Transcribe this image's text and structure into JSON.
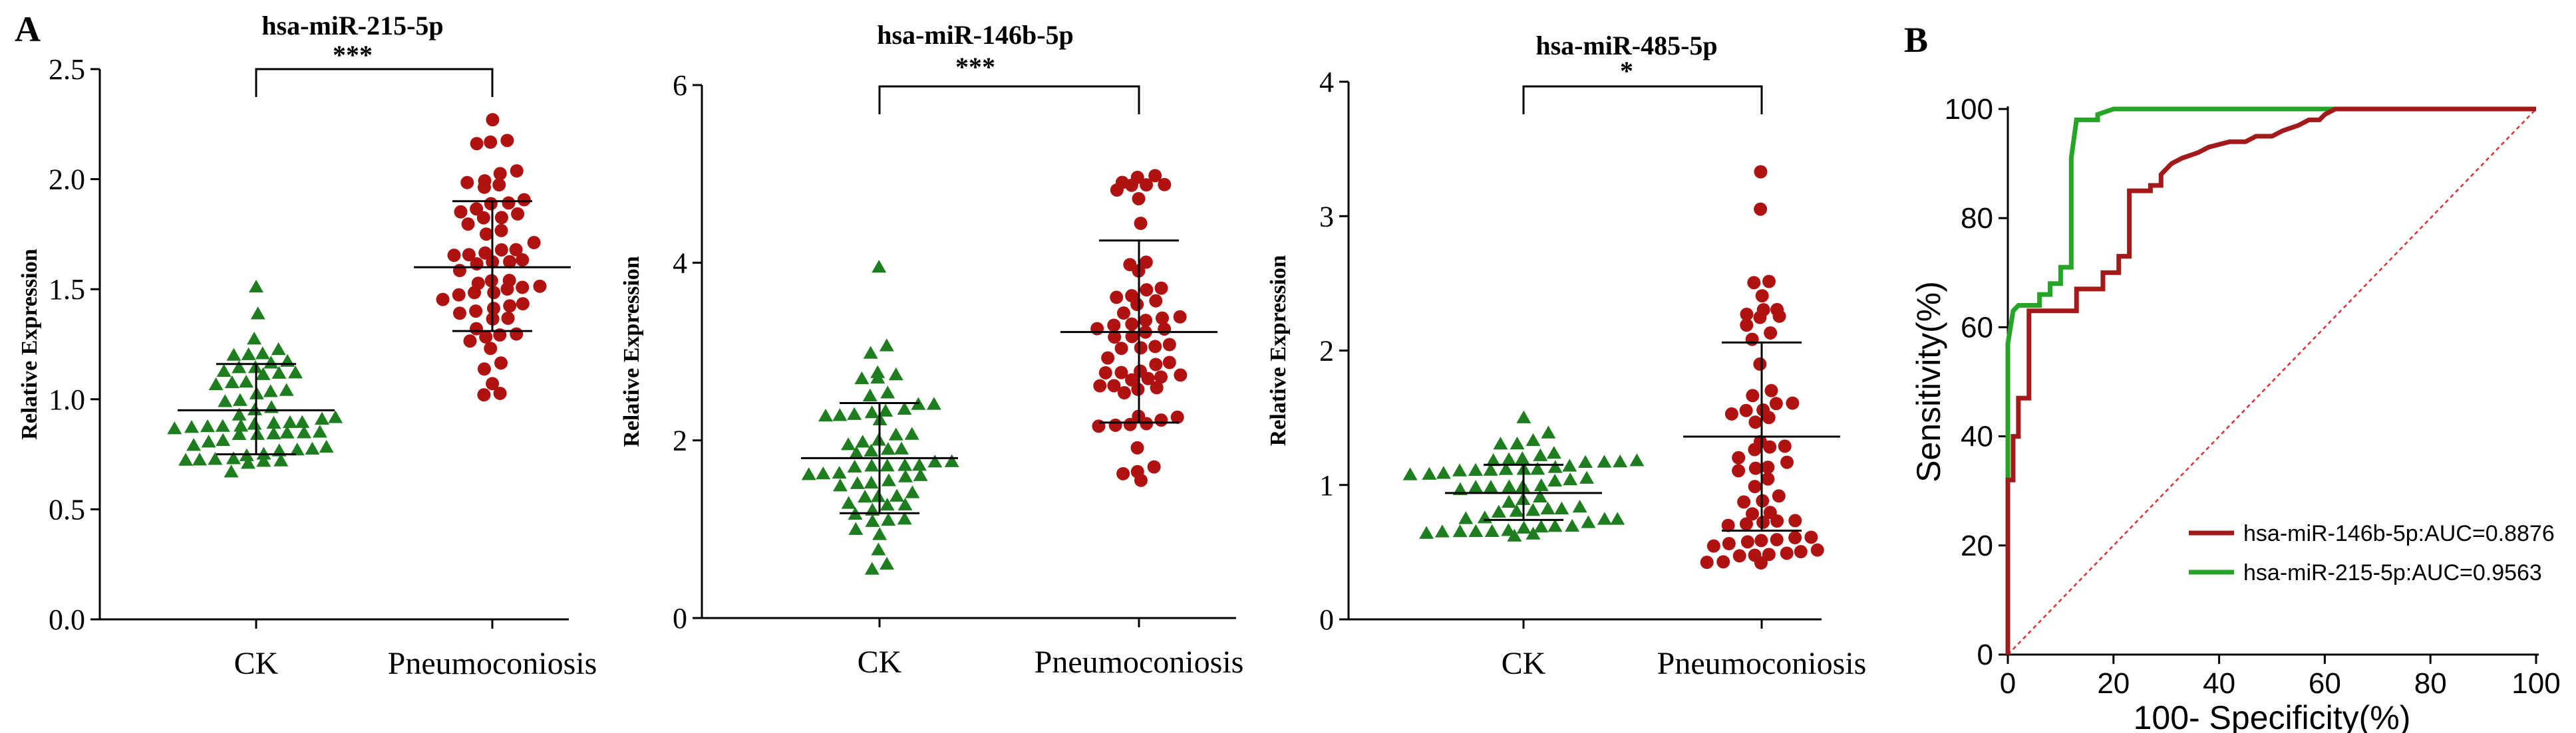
{
  "labels": {
    "panel_a": "A",
    "panel_b": "B"
  },
  "colors": {
    "ck": "#1e7d1e",
    "pneumo": "#b01212",
    "roc_miR146b": "#a31a1a",
    "roc_miR215": "#25a525",
    "reference": "#e03030"
  },
  "chart_data": [
    {
      "type": "scatter",
      "title": "hsa-miR-215-5p",
      "ylabel": "Relative Expression",
      "ylim": [
        0,
        2.5
      ],
      "yticks": [
        "0.0",
        "0.5",
        "1.0",
        "1.5",
        "2.0",
        "2.5"
      ],
      "categories": [
        "CK",
        "Pneumoconiosis"
      ],
      "significance": "***",
      "groups": [
        {
          "name": "CK",
          "marker": "triangle",
          "mean": 0.95,
          "sd_low": 0.75,
          "sd_high": 1.16,
          "n": 60,
          "min": 0.67,
          "max": 1.51
        },
        {
          "name": "Pneumoconiosis",
          "marker": "circle",
          "mean": 1.6,
          "sd_low": 1.31,
          "sd_high": 1.9,
          "n": 60,
          "min": 1.02,
          "max": 2.27
        }
      ]
    },
    {
      "type": "scatter",
      "title": "hsa-miR-146b-5p",
      "ylabel": "Relative Expression",
      "ylim": [
        0,
        6
      ],
      "yticks": [
        "0",
        "2",
        "4",
        "6"
      ],
      "categories": [
        "CK",
        "Pneumoconiosis"
      ],
      "significance": "***",
      "groups": [
        {
          "name": "CK",
          "marker": "triangle",
          "mean": 1.8,
          "sd_low": 1.18,
          "sd_high": 2.42,
          "n": 60,
          "min": 0.55,
          "max": 3.95
        },
        {
          "name": "Pneumoconiosis",
          "marker": "circle",
          "mean": 3.22,
          "sd_low": 2.2,
          "sd_high": 4.25,
          "n": 60,
          "min": 1.55,
          "max": 4.98
        }
      ]
    },
    {
      "type": "scatter",
      "title": "hsa-miR-485-5p",
      "ylabel": "Relative Expression",
      "ylim": [
        0,
        4
      ],
      "yticks": [
        "0",
        "1",
        "2",
        "3",
        "4"
      ],
      "categories": [
        "CK",
        "Pneumoconiosis"
      ],
      "significance": "*",
      "groups": [
        {
          "name": "CK",
          "marker": "triangle",
          "mean": 0.94,
          "sd_low": 0.74,
          "sd_high": 1.15,
          "n": 60,
          "min": 0.62,
          "max": 1.5
        },
        {
          "name": "Pneumoconiosis",
          "marker": "circle",
          "mean": 1.36,
          "sd_low": 0.66,
          "sd_high": 2.06,
          "n": 60,
          "min": 0.42,
          "max": 3.33
        }
      ]
    },
    {
      "type": "line",
      "xlabel": "100- Specificity(%)",
      "ylabel": "Sensitivity(%)",
      "xlim": [
        0,
        100
      ],
      "ylim": [
        0,
        100
      ],
      "xticks": [
        "0",
        "20",
        "40",
        "60",
        "80",
        "100"
      ],
      "yticks": [
        "0",
        "20",
        "40",
        "60",
        "80",
        "100"
      ],
      "series": [
        {
          "name": "hsa-miR-146b-5p:AUC=0.8876",
          "x": [
            0,
            0,
            1,
            1,
            2,
            2,
            4,
            4,
            9,
            9,
            13,
            13,
            15,
            15,
            18,
            18,
            21,
            21,
            23,
            23,
            27,
            27,
            29,
            29,
            31,
            33,
            36,
            38,
            42,
            45,
            47,
            50,
            52,
            55,
            57,
            59,
            60,
            62,
            100
          ],
          "y": [
            0,
            32,
            32,
            40,
            40,
            47,
            47,
            63,
            63,
            63,
            63,
            67,
            67,
            67,
            67,
            70,
            70,
            73,
            73,
            85,
            85,
            86,
            86,
            88,
            90,
            91,
            92,
            93,
            94,
            94,
            95,
            95,
            96,
            97,
            98,
            98,
            99,
            100,
            100
          ]
        },
        {
          "name": "hsa-miR-215-5p:AUC=0.9563",
          "x": [
            0,
            0,
            0.5,
            1,
            2,
            4,
            6,
            6,
            8,
            8,
            10,
            10,
            12,
            12,
            13,
            15,
            17,
            17,
            20,
            25,
            100
          ],
          "y": [
            0,
            57,
            60,
            63,
            64,
            64,
            64,
            66,
            66,
            68,
            68,
            71,
            71,
            91,
            98,
            98,
            98,
            99,
            100,
            100,
            100
          ]
        },
        {
          "name": "reference",
          "x": [
            0,
            100
          ],
          "y": [
            0,
            100
          ]
        }
      ],
      "legend": "bottom-right"
    }
  ]
}
